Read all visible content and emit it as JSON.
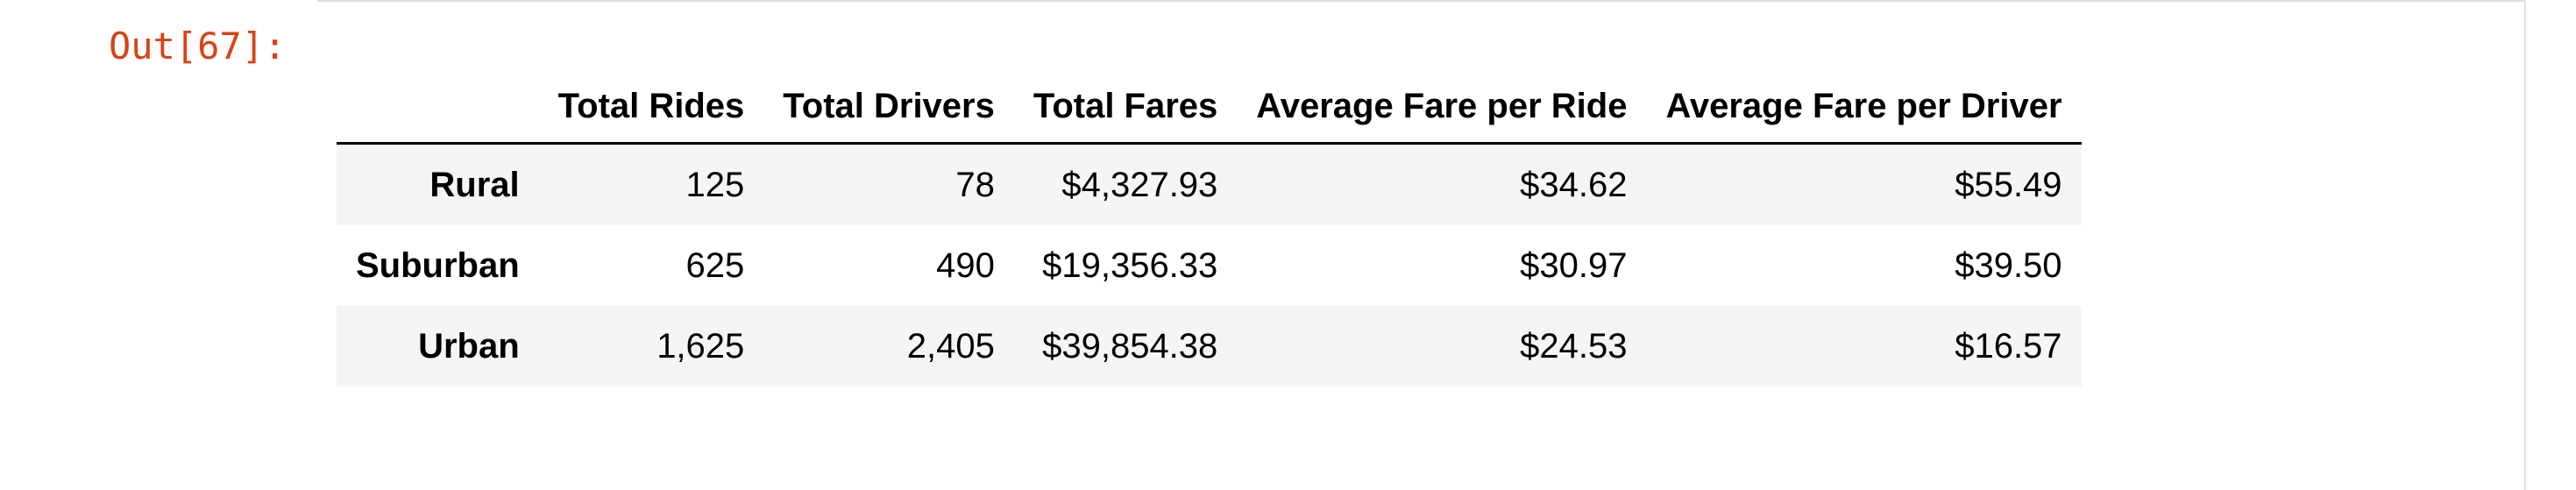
{
  "output": {
    "prompt": "Out[67]:"
  },
  "table": {
    "columns": [
      "Total Rides",
      "Total Drivers",
      "Total Fares",
      "Average Fare per Ride",
      "Average Fare per Driver"
    ],
    "rows": [
      {
        "index": "Rural",
        "cells": [
          "125",
          "78",
          "$4,327.93",
          "$34.62",
          "$55.49"
        ]
      },
      {
        "index": "Suburban",
        "cells": [
          "625",
          "490",
          "$19,356.33",
          "$30.97",
          "$39.50"
        ]
      },
      {
        "index": "Urban",
        "cells": [
          "1,625",
          "2,405",
          "$39,854.38",
          "$24.53",
          "$16.57"
        ]
      }
    ]
  }
}
